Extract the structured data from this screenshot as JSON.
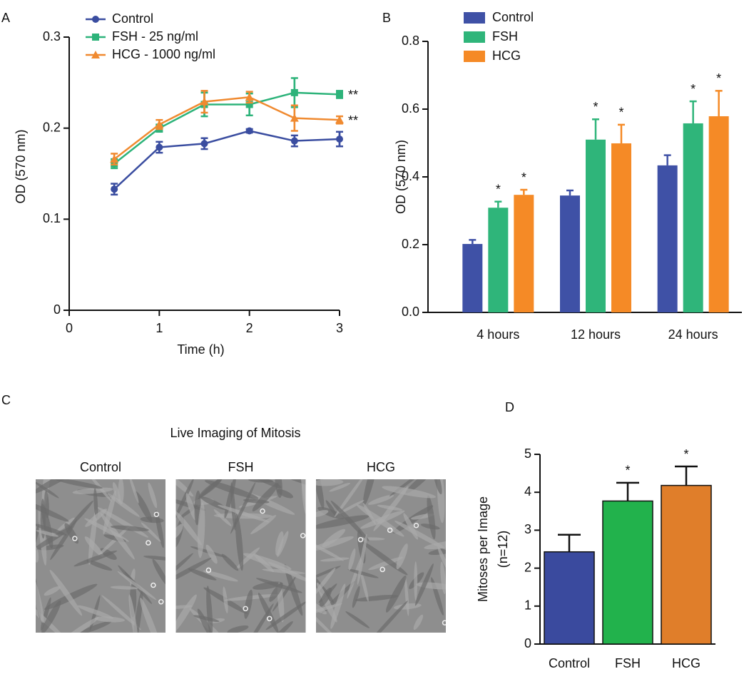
{
  "chart_data": [
    {
      "type": "line",
      "panel_label": "A",
      "xlabel": "Time (h)",
      "ylabel": "OD (570 nm)",
      "x": [
        0.5,
        1,
        1.5,
        2,
        2.5,
        3
      ],
      "xlim": [
        0,
        3
      ],
      "xticks": [
        0,
        1,
        2,
        3
      ],
      "ylim": [
        0,
        0.3
      ],
      "yticks": [
        0,
        0.1,
        0.2,
        0.3
      ],
      "series": [
        {
          "name": "Control",
          "color": "#3a4da0",
          "marker": "circle",
          "values": [
            0.133,
            0.179,
            0.183,
            0.197,
            0.186,
            0.188
          ],
          "errors": [
            0.006,
            0.006,
            0.006,
            0.002,
            0.006,
            0.008
          ]
        },
        {
          "name": "FSH - 25 ng/ml",
          "color": "#2db37a",
          "marker": "square",
          "annotation": "**",
          "values": [
            0.161,
            0.2,
            0.226,
            0.226,
            0.239,
            0.237
          ],
          "errors": [
            0.005,
            0.004,
            0.013,
            0.012,
            0.016,
            0.004
          ]
        },
        {
          "name": "HCG - 1000 ng/ml",
          "color": "#f08a30",
          "marker": "triangle",
          "annotation": "**",
          "values": [
            0.166,
            0.204,
            0.229,
            0.234,
            0.211,
            0.209
          ],
          "errors": [
            0.006,
            0.005,
            0.012,
            0.006,
            0.014,
            0.004
          ]
        }
      ]
    },
    {
      "type": "grouped_bar",
      "panel_label": "B",
      "ylabel": "OD (570 nm)",
      "categories": [
        "4 hours",
        "12 hours",
        "24 hours"
      ],
      "ylim": [
        0,
        0.8
      ],
      "yticks": [
        {
          "value": 0,
          "label": "0.0"
        },
        0.2,
        0.4,
        0.6,
        0.8
      ],
      "series": [
        {
          "name": "Control",
          "color": "#3f51a6",
          "values": [
            0.202,
            0.345,
            0.434
          ],
          "errors": [
            0.012,
            0.015,
            0.03
          ],
          "annotations": [
            null,
            null,
            null
          ]
        },
        {
          "name": "FSH",
          "color": "#2fb57a",
          "values": [
            0.309,
            0.51,
            0.558
          ],
          "errors": [
            0.018,
            0.06,
            0.065
          ],
          "annotations": [
            "*",
            "*",
            "*"
          ]
        },
        {
          "name": "HCG",
          "color": "#f58a26",
          "values": [
            0.347,
            0.499,
            0.579
          ],
          "errors": [
            0.015,
            0.055,
            0.075
          ],
          "annotations": [
            "*",
            "*",
            "*"
          ]
        }
      ]
    },
    {
      "type": "image",
      "panel_label": "C",
      "title": "Live Imaging of Mitosis",
      "categories": [
        "Control",
        "FSH",
        "HCG"
      ]
    },
    {
      "type": "bar",
      "panel_label": "D",
      "ylabel": [
        "Mitoses per Image",
        "(n=12)"
      ],
      "categories": [
        "Control",
        "FSH",
        "HCG"
      ],
      "values": [
        2.43,
        3.77,
        4.18
      ],
      "errors": [
        0.45,
        0.48,
        0.5
      ],
      "annotations": [
        null,
        "*",
        "*"
      ],
      "colors": [
        "#3a4a9e",
        "#22b24c",
        "#e07e2a"
      ],
      "ylim": [
        0,
        5
      ],
      "yticks": [
        0,
        1,
        2,
        3,
        4,
        5
      ]
    }
  ]
}
